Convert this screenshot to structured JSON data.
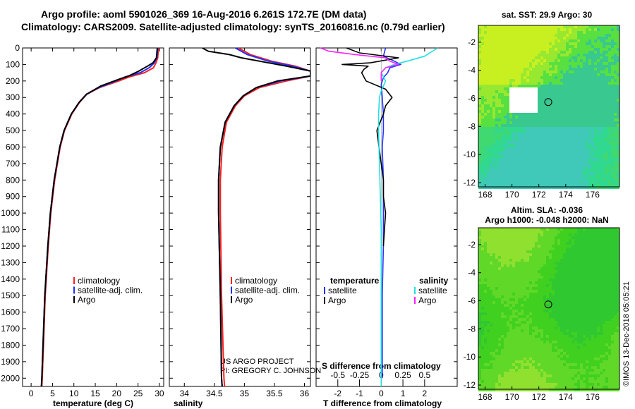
{
  "title_line1": "Argo profile: aoml 5901026_369 16-Aug-2016 6.261S 172.7E (DM data)",
  "title_line2": "Climatology: CARS2009. Satellite-adjusted climatology: synTS_20160816.nc (0.79d earlier)",
  "project_line1": "US ARGO PROJECT",
  "project_line2": "PI: GREGORY C. JOHNSON",
  "credit": "©IMOS 13-Dec-2018 05:05:21",
  "colors": {
    "climatology": "#ff2020",
    "satellite": "#2030ff",
    "argo": "#000000",
    "sal_satellite": "#20e0e0",
    "sal_argo": "#ff20ff"
  },
  "chart_data": [
    {
      "type": "line",
      "panel": "temperature",
      "xlabel": "temperature (deg C)",
      "ylabel": "",
      "xlim": [
        -2,
        31
      ],
      "ylim": [
        2050,
        0
      ],
      "xticks": [
        0,
        5,
        10,
        15,
        20,
        25,
        30
      ],
      "yticks": [
        0,
        100,
        200,
        300,
        400,
        500,
        600,
        700,
        800,
        900,
        1000,
        1100,
        1200,
        1300,
        1400,
        1500,
        1600,
        1700,
        1800,
        1900,
        2000
      ],
      "legend": [
        "climatology",
        "satellite-adj. clim.",
        "Argo"
      ],
      "series": [
        {
          "name": "climatology",
          "pressure": [
            0,
            60,
            90,
            120,
            150,
            175,
            200,
            240,
            280,
            330,
            400,
            500,
            600,
            800,
            1000,
            1200,
            1500,
            2000,
            2050
          ],
          "values": [
            29.8,
            29.6,
            29.2,
            28.6,
            26.5,
            23,
            20.5,
            16,
            13,
            11.3,
            9.5,
            7.8,
            6.8,
            5.5,
            4.6,
            4,
            3.3,
            2.6,
            2.5
          ]
        },
        {
          "name": "satellite-adj. clim.",
          "pressure": [
            0,
            60,
            90,
            120,
            150,
            175,
            200,
            240,
            280,
            330,
            400,
            500,
            600,
            800,
            1000,
            1200,
            1500,
            2000,
            2050
          ],
          "values": [
            29.6,
            29.4,
            28.8,
            27.6,
            25.5,
            22,
            19.8,
            15.8,
            12.9,
            11.2,
            9.4,
            7.7,
            6.7,
            5.4,
            4.5,
            3.9,
            3.2,
            2.5,
            2.4
          ]
        },
        {
          "name": "Argo",
          "pressure": [
            0,
            60,
            90,
            110,
            140,
            170,
            190,
            230,
            280,
            330,
            400,
            500,
            600,
            800,
            1000,
            1200,
            1500,
            2000,
            2050
          ],
          "values": [
            29.5,
            29.3,
            28.5,
            27.2,
            25.2,
            22.8,
            20.5,
            16.3,
            13,
            11.2,
            9.4,
            7.7,
            6.7,
            5.4,
            4.5,
            3.9,
            3.2,
            2.5,
            2.4
          ]
        }
      ]
    },
    {
      "type": "line",
      "panel": "salinity",
      "xlabel": "salinity",
      "ylabel": "",
      "xlim": [
        33.75,
        36.1
      ],
      "ylim": [
        2050,
        0
      ],
      "xticks": [
        34,
        34.5,
        35,
        35.5,
        36
      ],
      "xticklabels": [
        "34",
        "34.5",
        "35",
        "35.5",
        "36"
      ],
      "legend": [
        "climatology",
        "satellite-adj. clim.",
        "Argo"
      ],
      "series": [
        {
          "name": "climatology",
          "pressure": [
            0,
            40,
            80,
            110,
            140,
            170,
            200,
            240,
            290,
            350,
            450,
            600,
            800,
            1000,
            1500,
            2000,
            2050
          ],
          "values": [
            34.9,
            35.1,
            35.45,
            35.85,
            36.1,
            36.1,
            35.7,
            35.25,
            35,
            34.85,
            34.7,
            34.63,
            34.6,
            34.6,
            34.62,
            34.66,
            34.67
          ]
        },
        {
          "name": "satellite-adj. clim.",
          "pressure": [
            0,
            40,
            80,
            110,
            140,
            170,
            200,
            240,
            290,
            350,
            450,
            600,
            800,
            1000,
            1500,
            2000,
            2050
          ],
          "values": [
            34.85,
            35.05,
            35.4,
            35.8,
            36.1,
            36.1,
            35.6,
            35.2,
            34.98,
            34.83,
            34.68,
            34.6,
            34.57,
            34.57,
            34.6,
            34.62,
            34.63
          ]
        },
        {
          "name": "Argo",
          "pressure": [
            0,
            20,
            40,
            60,
            80,
            110,
            140,
            170,
            200,
            240,
            290,
            350,
            450,
            600,
            800,
            1000,
            1500,
            2000,
            2050
          ],
          "values": [
            34.3,
            34.4,
            34.75,
            34.95,
            35.25,
            35.7,
            36.1,
            36.1,
            35.55,
            35.2,
            34.98,
            34.83,
            34.68,
            34.6,
            34.57,
            34.57,
            34.6,
            34.62,
            34.63
          ]
        }
      ]
    },
    {
      "type": "line",
      "panel": "difference",
      "xlabel": "T difference from climatology",
      "x2label": "S difference from climatology",
      "ylabel": "",
      "xlim": [
        -3,
        3.5
      ],
      "x2lim": [
        -0.75,
        0.875
      ],
      "ylim": [
        2050,
        0
      ],
      "xticks": [
        -2,
        -1,
        0,
        1,
        2
      ],
      "x2ticks": [
        -0.5,
        -0.25,
        0,
        0.25,
        0.5
      ],
      "x2ticklabels": [
        "-0.5",
        "-0.25",
        "0",
        "0.25",
        "0.5"
      ],
      "legend_left_title": "temperature",
      "legend_right_title": "salinity",
      "legend": [
        "satellite",
        "Argo",
        "satellite",
        "Argo"
      ],
      "series": [
        {
          "name": "satellite",
          "axis": "T",
          "pressure": [
            0,
            50,
            80,
            100,
            120,
            150,
            180,
            220,
            300,
            400,
            500,
            600,
            800,
            1000,
            1200,
            1500,
            2000
          ],
          "values": [
            0.2,
            0.1,
            0.6,
            0.9,
            0.4,
            0.3,
            0.1,
            0.0,
            0.05,
            0.1,
            0.1,
            0.05,
            0.1,
            0.1,
            0.1,
            0.05,
            0.05
          ]
        },
        {
          "name": "Argo",
          "axis": "T",
          "pressure": [
            0,
            30,
            60,
            90,
            100,
            110,
            130,
            150,
            200,
            250,
            300,
            350,
            400,
            500,
            600,
            700,
            800,
            900,
            1000,
            1100,
            1200
          ],
          "values": [
            -1.6,
            -1.0,
            0.8,
            -0.5,
            -1.8,
            -0.6,
            -0.8,
            -0.9,
            -0.7,
            0.2,
            0.5,
            0.2,
            0.1,
            -0.2,
            -0.1,
            0.0,
            0.1,
            0.1,
            0.2,
            0.15,
            0.1
          ]
        },
        {
          "name": "satellite",
          "axis": "S",
          "pressure": [
            0,
            50,
            80,
            100,
            120,
            150,
            200,
            260,
            300,
            400,
            500,
            700,
            900,
            1100,
            1300,
            1500,
            1800,
            2000,
            2050
          ],
          "values": [
            0.65,
            0.5,
            0.3,
            0.15,
            0.05,
            0.0,
            0.05,
            0.0,
            -0.02,
            -0.03,
            -0.03,
            -0.02,
            -0.01,
            0.0,
            0.0,
            0.0,
            0.0,
            0.0,
            0.0
          ]
        },
        {
          "name": "Argo",
          "axis": "S",
          "pressure": [
            0,
            20,
            40,
            60,
            80,
            100,
            120,
            150,
            200
          ],
          "values": [
            -0.7,
            -0.6,
            -0.3,
            0.05,
            0.1,
            0.2,
            0.05,
            0.0,
            0.0
          ]
        }
      ]
    },
    {
      "type": "heatmap",
      "panel": "sst_map",
      "title": "sat. SST: 29.9 Argo: 30",
      "xlim": [
        167.5,
        178
      ],
      "ylim": [
        -12.3,
        -0.8
      ],
      "xticks": [
        168,
        170,
        172,
        174,
        176
      ],
      "yticks": [
        -2,
        -4,
        -6,
        -8,
        -10,
        -12
      ],
      "marker": {
        "lon": 172.7,
        "lat": -6.26
      }
    },
    {
      "type": "heatmap",
      "panel": "sla_map",
      "title": "Altim. SLA: -0.036",
      "subtitle": "Argo h1000: -0.048 h2000: NaN",
      "xlim": [
        167.5,
        178
      ],
      "ylim": [
        -12.3,
        -0.8
      ],
      "xticks": [
        168,
        170,
        172,
        174,
        176
      ],
      "yticks": [
        -2,
        -4,
        -6,
        -8,
        -10,
        -12
      ],
      "marker": {
        "lon": 172.7,
        "lat": -6.26
      }
    }
  ]
}
